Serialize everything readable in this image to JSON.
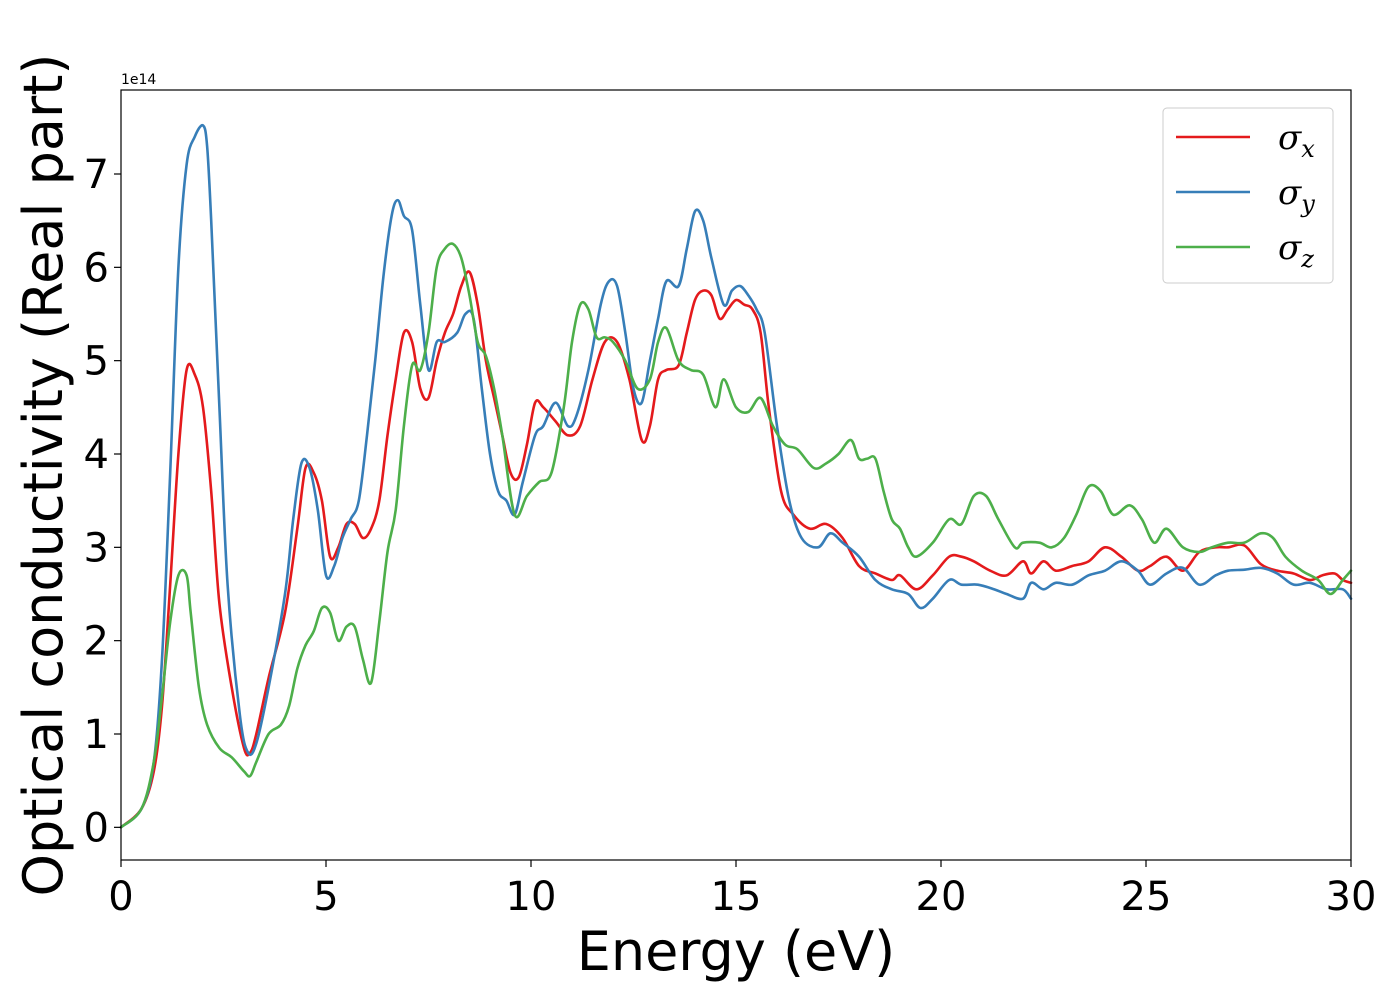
{
  "chart_data": {
    "type": "line",
    "xlabel": "Energy (eV)",
    "ylabel": "Optical conductivity (Real part)",
    "y_offset_label": "1e14",
    "xlim": [
      0,
      30
    ],
    "ylim": [
      -0.35,
      7.9
    ],
    "x_ticks": [
      0,
      5,
      10,
      15,
      20,
      25,
      30
    ],
    "y_ticks": [
      0,
      1,
      2,
      3,
      4,
      5,
      6,
      7
    ],
    "grid": false,
    "legend_position": "top-right",
    "series": [
      {
        "name": "σx",
        "symbol": "σ",
        "subscript": "x",
        "color": "#e41a1c",
        "x": [
          0,
          0.5,
          0.8,
          1.0,
          1.2,
          1.4,
          1.6,
          1.8,
          2.0,
          2.2,
          2.4,
          2.7,
          3.0,
          3.15,
          3.3,
          3.6,
          4.0,
          4.3,
          4.5,
          4.7,
          4.9,
          5.1,
          5.3,
          5.5,
          5.7,
          5.9,
          6.1,
          6.3,
          6.5,
          6.7,
          6.9,
          7.1,
          7.3,
          7.5,
          7.7,
          7.9,
          8.1,
          8.3,
          8.5,
          8.7,
          8.9,
          9.1,
          9.3,
          9.5,
          9.7,
          9.9,
          10.1,
          10.3,
          10.6,
          10.9,
          11.2,
          11.5,
          11.8,
          12.1,
          12.4,
          12.7,
          12.9,
          13.1,
          13.3,
          13.6,
          13.8,
          14.0,
          14.2,
          14.4,
          14.6,
          14.8,
          15.0,
          15.2,
          15.4,
          15.6,
          15.8,
          16.1,
          16.4,
          16.8,
          17.2,
          17.6,
          18.0,
          18.4,
          18.8,
          19.0,
          19.4,
          19.8,
          20.2,
          20.5,
          20.8,
          21.2,
          21.6,
          22.0,
          22.2,
          22.5,
          22.8,
          23.2,
          23.6,
          24.0,
          24.4,
          24.8,
          25.1,
          25.5,
          25.9,
          26.3,
          26.7,
          27.0,
          27.4,
          27.8,
          28.2,
          28.6,
          29.0,
          29.3,
          29.6,
          29.8,
          30.0
        ],
        "y": [
          0,
          0.2,
          0.6,
          1.3,
          2.6,
          4.0,
          4.9,
          4.85,
          4.5,
          3.6,
          2.4,
          1.5,
          0.85,
          0.8,
          1.0,
          1.6,
          2.3,
          3.2,
          3.85,
          3.8,
          3.5,
          2.9,
          3.0,
          3.25,
          3.25,
          3.1,
          3.2,
          3.5,
          4.2,
          4.8,
          5.3,
          5.2,
          4.7,
          4.6,
          5.0,
          5.3,
          5.5,
          5.8,
          5.95,
          5.6,
          5.0,
          4.6,
          4.2,
          3.8,
          3.75,
          4.1,
          4.55,
          4.5,
          4.35,
          4.2,
          4.3,
          4.8,
          5.2,
          5.2,
          4.8,
          4.15,
          4.3,
          4.8,
          4.9,
          4.95,
          5.3,
          5.65,
          5.75,
          5.7,
          5.45,
          5.55,
          5.65,
          5.6,
          5.55,
          5.3,
          4.5,
          3.6,
          3.35,
          3.2,
          3.25,
          3.1,
          2.8,
          2.72,
          2.65,
          2.7,
          2.55,
          2.7,
          2.9,
          2.9,
          2.85,
          2.75,
          2.7,
          2.85,
          2.72,
          2.85,
          2.75,
          2.8,
          2.85,
          3.0,
          2.9,
          2.75,
          2.8,
          2.9,
          2.75,
          2.95,
          3.0,
          3.0,
          3.02,
          2.82,
          2.75,
          2.72,
          2.65,
          2.7,
          2.72,
          2.65,
          2.62
        ]
      },
      {
        "name": "σy",
        "symbol": "σ",
        "subscript": "y",
        "color": "#377eb8",
        "x": [
          0,
          0.5,
          0.8,
          1.0,
          1.2,
          1.4,
          1.6,
          1.8,
          2.0,
          2.1,
          2.2,
          2.4,
          2.6,
          2.9,
          3.1,
          3.3,
          3.6,
          4.0,
          4.2,
          4.4,
          4.6,
          4.8,
          5.0,
          5.2,
          5.4,
          5.6,
          5.8,
          6.0,
          6.2,
          6.4,
          6.6,
          6.75,
          6.9,
          7.1,
          7.3,
          7.5,
          7.7,
          7.9,
          8.2,
          8.4,
          8.6,
          8.8,
          9.0,
          9.2,
          9.4,
          9.6,
          9.8,
          10.1,
          10.3,
          10.6,
          10.9,
          11.1,
          11.4,
          11.7,
          11.9,
          12.1,
          12.3,
          12.5,
          12.7,
          12.9,
          13.1,
          13.3,
          13.6,
          13.8,
          14.0,
          14.2,
          14.4,
          14.7,
          14.9,
          15.1,
          15.3,
          15.5,
          15.7,
          16.0,
          16.3,
          16.6,
          17.0,
          17.3,
          17.6,
          18.0,
          18.4,
          18.8,
          19.2,
          19.5,
          19.8,
          20.2,
          20.5,
          20.9,
          21.3,
          21.6,
          22.0,
          22.2,
          22.5,
          22.8,
          23.2,
          23.6,
          24.0,
          24.4,
          24.8,
          25.1,
          25.5,
          25.9,
          26.3,
          26.7,
          27.0,
          27.4,
          27.8,
          28.2,
          28.6,
          29.0,
          29.4,
          29.8,
          30.0
        ],
        "y": [
          0,
          0.2,
          0.7,
          1.8,
          3.8,
          6.0,
          7.1,
          7.4,
          7.52,
          7.3,
          6.5,
          4.5,
          2.6,
          1.2,
          0.8,
          0.9,
          1.5,
          2.5,
          3.3,
          3.9,
          3.85,
          3.4,
          2.7,
          2.8,
          3.1,
          3.3,
          3.5,
          4.2,
          5.0,
          5.9,
          6.55,
          6.72,
          6.55,
          6.4,
          5.6,
          4.9,
          5.2,
          5.2,
          5.3,
          5.5,
          5.45,
          4.7,
          4.0,
          3.6,
          3.5,
          3.35,
          3.7,
          4.2,
          4.3,
          4.55,
          4.3,
          4.4,
          4.9,
          5.6,
          5.85,
          5.8,
          5.3,
          4.7,
          4.55,
          5.0,
          5.45,
          5.85,
          5.8,
          6.2,
          6.6,
          6.5,
          6.1,
          5.6,
          5.75,
          5.8,
          5.7,
          5.55,
          5.3,
          4.3,
          3.5,
          3.1,
          3.0,
          3.15,
          3.05,
          2.9,
          2.65,
          2.55,
          2.5,
          2.35,
          2.45,
          2.65,
          2.6,
          2.6,
          2.55,
          2.5,
          2.45,
          2.62,
          2.55,
          2.62,
          2.6,
          2.7,
          2.75,
          2.85,
          2.75,
          2.6,
          2.72,
          2.78,
          2.6,
          2.7,
          2.75,
          2.76,
          2.78,
          2.72,
          2.6,
          2.62,
          2.55,
          2.55,
          2.45
        ]
      },
      {
        "name": "σz",
        "symbol": "σ",
        "subscript": "z",
        "color": "#4daf4a",
        "x": [
          0,
          0.5,
          0.8,
          1.0,
          1.2,
          1.4,
          1.6,
          1.7,
          1.9,
          2.1,
          2.4,
          2.7,
          3.0,
          3.15,
          3.3,
          3.6,
          3.9,
          4.1,
          4.3,
          4.5,
          4.7,
          4.9,
          5.1,
          5.3,
          5.5,
          5.7,
          5.9,
          6.1,
          6.3,
          6.5,
          6.7,
          6.9,
          7.1,
          7.3,
          7.5,
          7.7,
          7.9,
          8.1,
          8.3,
          8.5,
          8.7,
          8.9,
          9.1,
          9.3,
          9.6,
          9.9,
          10.2,
          10.5,
          10.8,
          11.0,
          11.2,
          11.4,
          11.6,
          11.8,
          12.0,
          12.3,
          12.6,
          12.9,
          13.1,
          13.3,
          13.6,
          13.9,
          14.2,
          14.5,
          14.7,
          15.0,
          15.3,
          15.6,
          15.9,
          16.2,
          16.5,
          16.9,
          17.2,
          17.5,
          17.8,
          18.0,
          18.2,
          18.4,
          18.6,
          18.8,
          19.0,
          19.2,
          19.4,
          19.8,
          20.2,
          20.5,
          20.8,
          21.1,
          21.4,
          21.8,
          22.0,
          22.4,
          22.7,
          23.0,
          23.3,
          23.6,
          23.9,
          24.2,
          24.6,
          24.9,
          25.2,
          25.5,
          25.9,
          26.3,
          26.6,
          27.0,
          27.4,
          27.8,
          28.1,
          28.4,
          28.8,
          29.2,
          29.5,
          29.8,
          30.0
        ],
        "y": [
          0,
          0.2,
          0.7,
          1.4,
          2.2,
          2.7,
          2.7,
          2.3,
          1.5,
          1.1,
          0.85,
          0.75,
          0.6,
          0.55,
          0.7,
          1.0,
          1.1,
          1.3,
          1.7,
          1.95,
          2.1,
          2.35,
          2.3,
          2.0,
          2.15,
          2.15,
          1.8,
          1.55,
          2.2,
          2.95,
          3.4,
          4.3,
          4.95,
          4.9,
          5.3,
          6.0,
          6.2,
          6.25,
          6.1,
          5.7,
          5.2,
          5.05,
          4.7,
          4.2,
          3.35,
          3.55,
          3.7,
          3.8,
          4.5,
          5.2,
          5.6,
          5.55,
          5.25,
          5.25,
          5.2,
          5.0,
          4.7,
          4.8,
          5.2,
          5.35,
          5.0,
          4.9,
          4.85,
          4.5,
          4.8,
          4.5,
          4.45,
          4.6,
          4.3,
          4.1,
          4.05,
          3.85,
          3.9,
          4.0,
          4.15,
          3.95,
          3.95,
          3.95,
          3.6,
          3.3,
          3.2,
          3.0,
          2.9,
          3.05,
          3.3,
          3.25,
          3.55,
          3.55,
          3.3,
          3.0,
          3.05,
          3.05,
          3.0,
          3.1,
          3.35,
          3.65,
          3.6,
          3.35,
          3.45,
          3.3,
          3.05,
          3.2,
          3.0,
          2.95,
          3.0,
          3.05,
          3.05,
          3.15,
          3.1,
          2.9,
          2.75,
          2.65,
          2.5,
          2.65,
          2.75
        ]
      }
    ]
  }
}
